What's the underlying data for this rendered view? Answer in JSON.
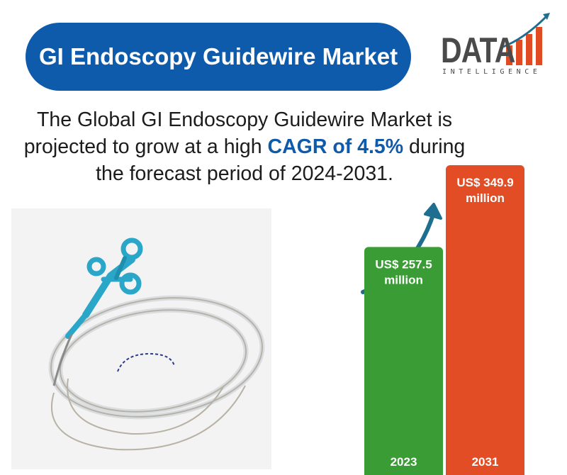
{
  "title": "GI Endoscopy Guidewire Market",
  "logo": {
    "word": "DATA",
    "sub": "INTELLIGENCE",
    "brand_color": "#e14b24",
    "text_color": "#4a4a4a"
  },
  "headline": {
    "part1": "The Global GI Endoscopy Guidewire Market  is",
    "part2": "projected to grow at a high ",
    "highlight": "CAGR of 4.5%",
    "part3": " during",
    "part4": "the forecast period of 2024-2031."
  },
  "colors": {
    "title_bg": "#0f5bab",
    "arrow": "#1e6f8f",
    "guidewire": "#2aa6c9"
  },
  "icons": [
    "growth-arrow-icon",
    "guidewire-product-image"
  ],
  "chart_data": {
    "type": "bar",
    "categories": [
      "2023",
      "2031"
    ],
    "values": [
      257.5,
      349.9
    ],
    "data_labels": [
      [
        "US$ 257.5",
        "million"
      ],
      [
        "US$ 349.9",
        "million"
      ]
    ],
    "colors": [
      "#3a9c35",
      "#e24d26"
    ],
    "title": "",
    "xlabel": "",
    "ylabel": "",
    "unit": "US$ million",
    "ylim": [
      0,
      349.9
    ],
    "grid": false
  }
}
